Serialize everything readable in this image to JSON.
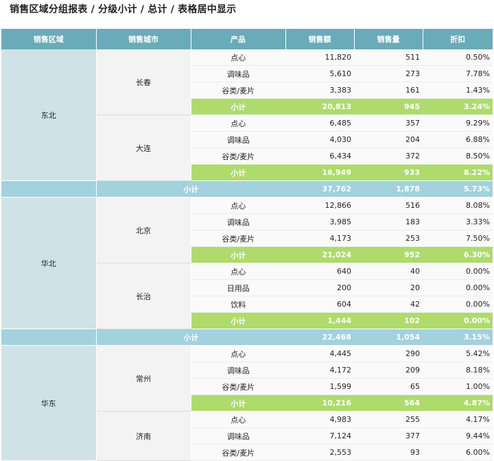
{
  "title": "销售区域分组报表 / 分级小计 / 总计 / 表格居中显示",
  "headers": [
    "销售区域",
    "销售城市",
    "产品",
    "销售额",
    "销售量",
    "折扣"
  ],
  "regions": [
    {
      "name": "东北",
      "cities": [
        {
          "name": "长春",
          "rows": [
            {
              "product": "点心",
              "amount": "11,820",
              "qty": "511",
              "discount": "0.50%"
            },
            {
              "product": "调味品",
              "amount": "5,610",
              "qty": "273",
              "discount": "7.78%"
            },
            {
              "product": "谷类/麦片",
              "amount": "3,383",
              "qty": "161",
              "discount": "1.43%"
            }
          ],
          "subtotal": {
            "label": "小计",
            "amount": "20,813",
            "qty": "945",
            "discount": "3.24%"
          }
        },
        {
          "name": "大连",
          "rows": [
            {
              "product": "点心",
              "amount": "6,485",
              "qty": "357",
              "discount": "9.29%"
            },
            {
              "product": "调味品",
              "amount": "4,030",
              "qty": "204",
              "discount": "6.88%"
            },
            {
              "product": "谷类/麦片",
              "amount": "6,434",
              "qty": "372",
              "discount": "8.50%"
            }
          ],
          "subtotal": {
            "label": "小计",
            "amount": "16,949",
            "qty": "933",
            "discount": "8.22%"
          }
        }
      ],
      "subtotal": {
        "label": "小计",
        "amount": "37,762",
        "qty": "1,878",
        "discount": "5.73%"
      }
    },
    {
      "name": "华北",
      "cities": [
        {
          "name": "北京",
          "rows": [
            {
              "product": "点心",
              "amount": "12,866",
              "qty": "516",
              "discount": "8.08%"
            },
            {
              "product": "调味品",
              "amount": "3,985",
              "qty": "183",
              "discount": "3.33%"
            },
            {
              "product": "谷类/麦片",
              "amount": "4,173",
              "qty": "253",
              "discount": "7.50%"
            }
          ],
          "subtotal": {
            "label": "小计",
            "amount": "21,024",
            "qty": "952",
            "discount": "6.30%"
          }
        },
        {
          "name": "长治",
          "rows": [
            {
              "product": "点心",
              "amount": "640",
              "qty": "40",
              "discount": "0.00%"
            },
            {
              "product": "日用品",
              "amount": "200",
              "qty": "20",
              "discount": "0.00%"
            },
            {
              "product": "饮料",
              "amount": "604",
              "qty": "42",
              "discount": "0.00%"
            }
          ],
          "subtotal": {
            "label": "小计",
            "amount": "1,444",
            "qty": "102",
            "discount": "0.00%"
          }
        }
      ],
      "subtotal": {
        "label": "小计",
        "amount": "22,468",
        "qty": "1,054",
        "discount": "3.15%"
      }
    },
    {
      "name": "华东",
      "cities": [
        {
          "name": "常州",
          "rows": [
            {
              "product": "点心",
              "amount": "4,445",
              "qty": "290",
              "discount": "5.42%"
            },
            {
              "product": "调味品",
              "amount": "4,172",
              "qty": "209",
              "discount": "8.18%"
            },
            {
              "product": "谷类/麦片",
              "amount": "1,599",
              "qty": "65",
              "discount": "1.00%"
            }
          ],
          "subtotal": {
            "label": "小计",
            "amount": "10,216",
            "qty": "564",
            "discount": "4.87%"
          }
        },
        {
          "name": "济南",
          "rows": [
            {
              "product": "点心",
              "amount": "4,983",
              "qty": "255",
              "discount": "4.17%"
            },
            {
              "product": "调味品",
              "amount": "7,124",
              "qty": "377",
              "discount": "9.44%"
            },
            {
              "product": "谷类/麦片",
              "amount": "2,553",
              "qty": "93",
              "discount": "6.00%"
            }
          ]
        }
      ]
    }
  ],
  "colors": {
    "header": "#6aabb9",
    "city_subtotal": "#aedb6c",
    "region_subtotal": "#a3d1de",
    "region_cell": "#cfe3e7"
  }
}
